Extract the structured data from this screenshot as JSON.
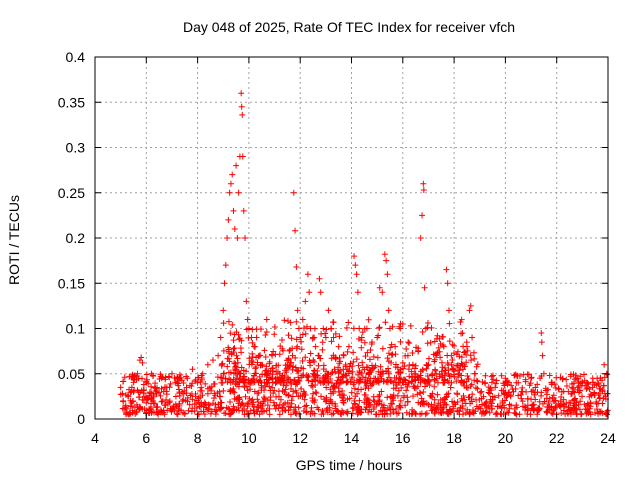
{
  "chart_data": {
    "type": "scatter",
    "title": "Day 048 of 2025, Rate Of TEC Index for receiver vfch",
    "xlabel": "GPS time / hours",
    "ylabel": "ROTI / TECUs",
    "xlim": [
      4,
      24
    ],
    "ylim": [
      0,
      0.4
    ],
    "xticks": [
      4,
      6,
      8,
      10,
      12,
      14,
      16,
      18,
      20,
      22,
      24
    ],
    "xtick_labels": [
      "4",
      "6",
      "8",
      "10",
      "12",
      "14",
      "16",
      "18",
      "20",
      "22",
      "24"
    ],
    "yticks": [
      0,
      0.05,
      0.1,
      0.15,
      0.2,
      0.25,
      0.3,
      0.35,
      0.4
    ],
    "ytick_labels": [
      "0",
      "0.05",
      "0.1",
      "0.15",
      "0.2",
      "0.25",
      "0.3",
      "0.35",
      "0.4"
    ],
    "grid": true,
    "marker": "+",
    "color": "#ff0000",
    "series": [
      {
        "name": "ROTI",
        "points": [
          [
            5.0,
            0.035
          ],
          [
            5.1,
            0.02
          ],
          [
            5.2,
            0.015
          ],
          [
            5.3,
            0.025
          ],
          [
            5.5,
            0.03
          ],
          [
            5.7,
            0.045
          ],
          [
            5.75,
            0.065
          ],
          [
            5.8,
            0.068
          ],
          [
            5.85,
            0.062
          ],
          [
            6.0,
            0.04
          ],
          [
            6.2,
            0.05
          ],
          [
            6.4,
            0.03
          ],
          [
            6.6,
            0.045
          ],
          [
            6.8,
            0.035
          ],
          [
            7.0,
            0.05
          ],
          [
            7.2,
            0.04
          ],
          [
            7.4,
            0.03
          ],
          [
            7.6,
            0.045
          ],
          [
            7.8,
            0.055
          ],
          [
            8.0,
            0.04
          ],
          [
            8.2,
            0.05
          ],
          [
            8.4,
            0.06
          ],
          [
            8.6,
            0.065
          ],
          [
            8.8,
            0.07
          ],
          [
            8.9,
            0.09
          ],
          [
            9.0,
            0.12
          ],
          [
            9.05,
            0.15
          ],
          [
            9.1,
            0.17
          ],
          [
            9.15,
            0.2
          ],
          [
            9.2,
            0.22
          ],
          [
            9.25,
            0.25
          ],
          [
            9.3,
            0.26
          ],
          [
            9.35,
            0.27
          ],
          [
            9.4,
            0.23
          ],
          [
            9.45,
            0.21
          ],
          [
            9.5,
            0.28
          ],
          [
            9.55,
            0.2
          ],
          [
            9.6,
            0.25
          ],
          [
            9.65,
            0.29
          ],
          [
            9.7,
            0.36
          ],
          [
            9.72,
            0.345
          ],
          [
            9.74,
            0.336
          ],
          [
            9.76,
            0.29
          ],
          [
            9.8,
            0.23
          ],
          [
            9.85,
            0.2
          ],
          [
            9.9,
            0.13
          ],
          [
            9.95,
            0.11
          ],
          [
            10.0,
            0.1
          ],
          [
            10.1,
            0.09
          ],
          [
            10.2,
            0.08
          ],
          [
            10.3,
            0.09
          ],
          [
            10.4,
            0.07
          ],
          [
            10.5,
            0.06
          ],
          [
            10.7,
            0.05
          ],
          [
            10.9,
            0.045
          ],
          [
            11.2,
            0.05
          ],
          [
            11.5,
            0.06
          ],
          [
            11.7,
            0.07
          ],
          [
            11.75,
            0.25
          ],
          [
            11.8,
            0.208
          ],
          [
            11.85,
            0.168
          ],
          [
            11.9,
            0.12
          ],
          [
            11.95,
            0.1
          ],
          [
            12.0,
            0.09
          ],
          [
            12.1,
            0.11
          ],
          [
            12.2,
            0.13
          ],
          [
            12.3,
            0.16
          ],
          [
            12.35,
            0.14
          ],
          [
            12.4,
            0.1
          ],
          [
            12.5,
            0.09
          ],
          [
            12.6,
            0.08
          ],
          [
            12.7,
            0.07
          ],
          [
            12.75,
            0.155
          ],
          [
            12.8,
            0.14
          ],
          [
            12.9,
            0.1
          ],
          [
            13.0,
            0.09
          ],
          [
            13.1,
            0.12
          ],
          [
            13.2,
            0.1
          ],
          [
            13.3,
            0.09
          ],
          [
            13.5,
            0.08
          ],
          [
            13.7,
            0.07
          ],
          [
            13.9,
            0.08
          ],
          [
            14.1,
            0.18
          ],
          [
            14.15,
            0.17
          ],
          [
            14.2,
            0.16
          ],
          [
            14.25,
            0.14
          ],
          [
            14.3,
            0.1
          ],
          [
            14.4,
            0.09
          ],
          [
            14.6,
            0.1
          ],
          [
            14.8,
            0.085
          ],
          [
            15.0,
            0.09
          ],
          [
            15.1,
            0.145
          ],
          [
            15.2,
            0.14
          ],
          [
            15.3,
            0.182
          ],
          [
            15.35,
            0.175
          ],
          [
            15.4,
            0.16
          ],
          [
            15.45,
            0.12
          ],
          [
            15.5,
            0.1
          ],
          [
            15.7,
            0.08
          ],
          [
            15.9,
            0.1
          ],
          [
            16.0,
            0.105
          ],
          [
            16.2,
            0.07
          ],
          [
            16.5,
            0.05
          ],
          [
            16.7,
            0.2
          ],
          [
            16.75,
            0.225
          ],
          [
            16.8,
            0.26
          ],
          [
            16.82,
            0.253
          ],
          [
            16.85,
            0.145
          ],
          [
            16.9,
            0.1
          ],
          [
            17.0,
            0.06
          ],
          [
            17.3,
            0.05
          ],
          [
            17.6,
            0.08
          ],
          [
            17.7,
            0.165
          ],
          [
            17.75,
            0.15
          ],
          [
            17.8,
            0.12
          ],
          [
            17.9,
            0.06
          ],
          [
            18.2,
            0.05
          ],
          [
            18.5,
            0.08
          ],
          [
            18.6,
            0.12
          ],
          [
            18.65,
            0.125
          ],
          [
            18.7,
            0.09
          ],
          [
            18.8,
            0.05
          ],
          [
            19.2,
            0.04
          ],
          [
            19.6,
            0.035
          ],
          [
            20.0,
            0.045
          ],
          [
            20.5,
            0.04
          ],
          [
            21.0,
            0.045
          ],
          [
            21.4,
            0.095
          ],
          [
            21.42,
            0.085
          ],
          [
            21.45,
            0.07
          ],
          [
            21.5,
            0.05
          ],
          [
            21.8,
            0.04
          ],
          [
            22.2,
            0.03
          ],
          [
            22.6,
            0.035
          ],
          [
            23.0,
            0.04
          ],
          [
            23.4,
            0.035
          ],
          [
            23.7,
            0.045
          ],
          [
            23.85,
            0.06
          ],
          [
            23.95,
            0.05
          ]
        ],
        "dense_band": {
          "description_values": "dense base of ROTI values between 0.005 and 0.05 spanning 5.0 to 24.0 h",
          "x_range": [
            5.0,
            24.0
          ],
          "y_range": [
            0.005,
            0.05
          ]
        }
      }
    ]
  }
}
